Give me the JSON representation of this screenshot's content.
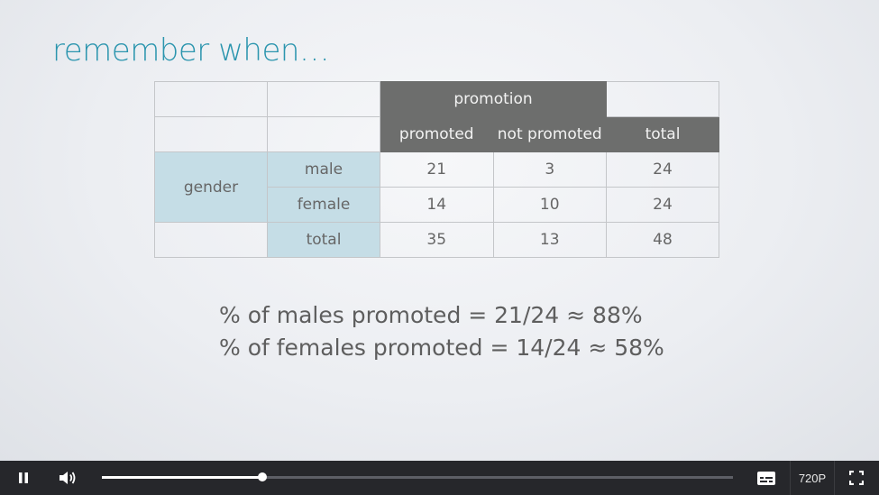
{
  "slide": {
    "title": "remember when…",
    "table": {
      "header_group": "promotion",
      "col_headers": [
        "promoted",
        "not promoted",
        "total"
      ],
      "row_group": "gender",
      "rows": [
        {
          "label": "male",
          "values": [
            "21",
            "3",
            "24"
          ]
        },
        {
          "label": "female",
          "values": [
            "14",
            "10",
            "24"
          ]
        },
        {
          "label": "total",
          "values": [
            "35",
            "13",
            "48"
          ]
        }
      ]
    },
    "formulas": [
      "% of males promoted = 21/24 ≈ 88%",
      "% of females promoted = 14/24 ≈ 58%"
    ]
  },
  "player": {
    "progress_fraction": 0.254,
    "quality_label": "720P",
    "icons": [
      "pause-icon",
      "volume-icon",
      "captions-icon",
      "fullscreen-icon"
    ]
  }
}
